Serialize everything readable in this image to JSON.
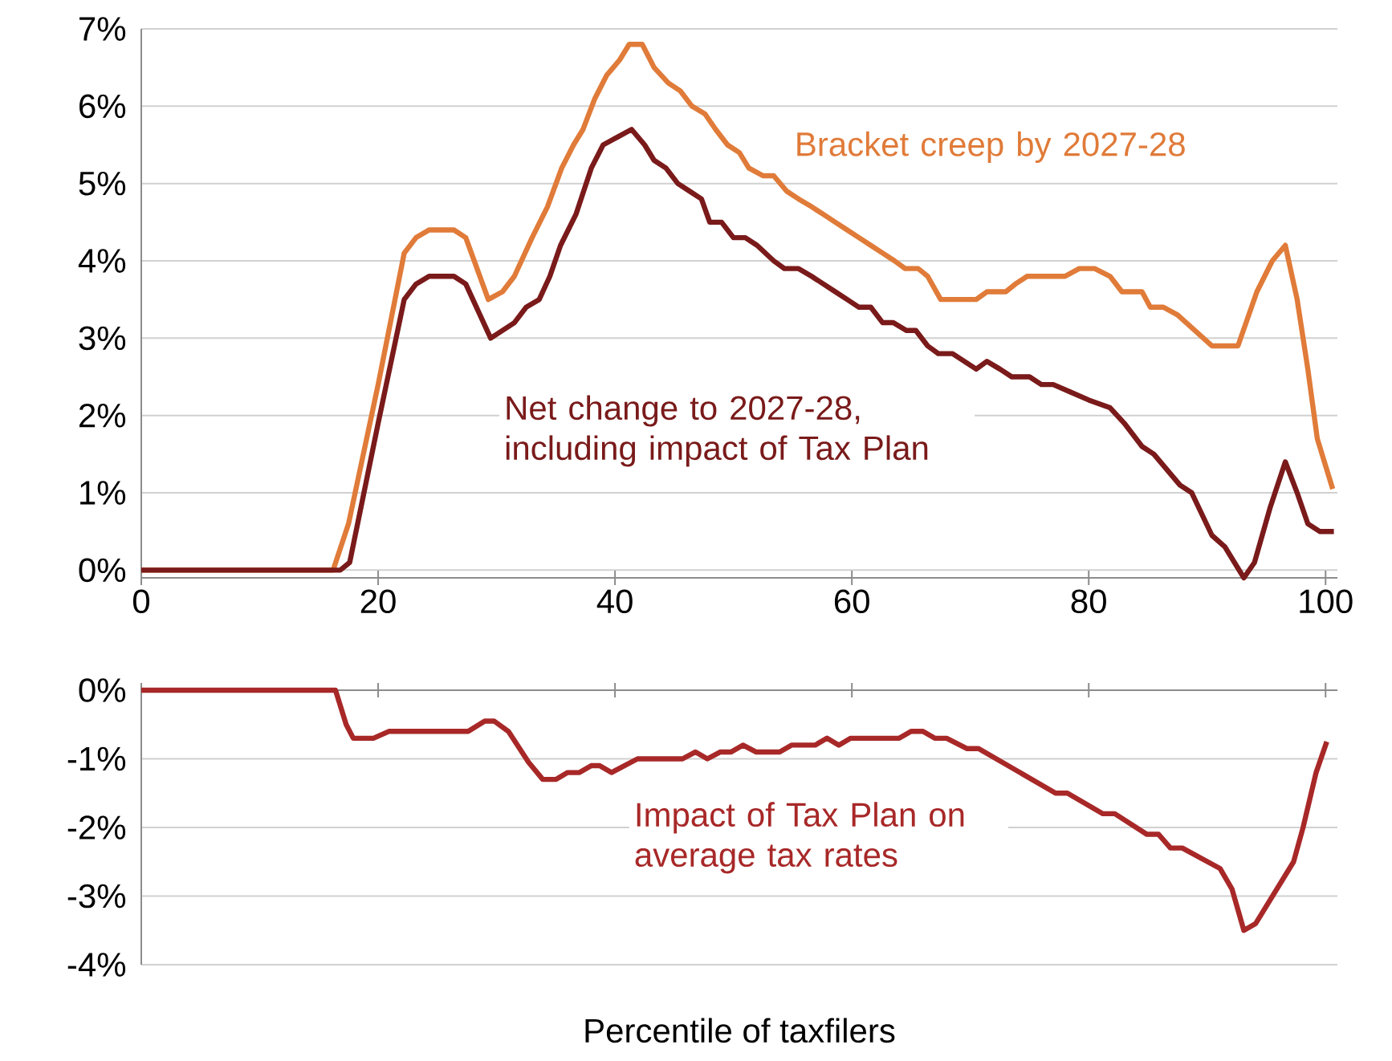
{
  "chart_data": [
    {
      "type": "line",
      "xlim": [
        0,
        101
      ],
      "ylim": [
        -0.1,
        7
      ],
      "xticks": [
        0,
        20,
        40,
        60,
        80,
        100
      ],
      "yticks": [
        {
          "value": 0,
          "label": "0%"
        },
        {
          "value": 1,
          "label": "1%"
        },
        {
          "value": 2,
          "label": "2%"
        },
        {
          "value": 3,
          "label": "3%"
        },
        {
          "value": 4,
          "label": "4%"
        },
        {
          "value": 5,
          "label": "5%"
        },
        {
          "value": 6,
          "label": "6%"
        },
        {
          "value": 7,
          "label": "7%"
        }
      ],
      "grid": "y",
      "series": [
        {
          "name": "Bracket creep by 2027-28",
          "color": "#e07b39",
          "x": [
            0,
            16.2,
            17.5,
            20,
            22.2,
            23.2,
            24.3,
            26.4,
            27.4,
            29.3,
            30.5,
            31.5,
            33,
            34.3,
            35.5,
            36.5,
            37.3,
            38.3,
            39.3,
            40.4,
            41.2,
            42.3,
            43.3,
            44.5,
            45.5,
            46.5,
            47.6,
            48.5,
            49.5,
            50.5,
            51.3,
            52.5,
            53.4,
            54.5,
            55.5,
            56.6,
            57.6,
            58.6,
            59.6,
            60.6,
            61.6,
            62.6,
            63.6,
            64.5,
            65.6,
            66.4,
            67.5,
            70.5,
            71.4,
            73,
            73.8,
            74.8,
            78,
            79.2,
            80.5,
            81.8,
            82.8,
            84.5,
            85.2,
            86.3,
            87.5,
            90.4,
            92.6,
            94.2,
            95.5,
            96.6,
            97.6,
            98.5,
            99.3,
            100.6
          ],
          "values": [
            0,
            0,
            0.6,
            2.4,
            4.1,
            4.3,
            4.4,
            4.4,
            4.3,
            3.5,
            3.6,
            3.8,
            4.3,
            4.7,
            5.2,
            5.5,
            5.7,
            6.1,
            6.4,
            6.6,
            6.8,
            6.8,
            6.5,
            6.3,
            6.2,
            6.0,
            5.9,
            5.7,
            5.5,
            5.4,
            5.2,
            5.1,
            5.1,
            4.9,
            4.8,
            4.7,
            4.6,
            4.5,
            4.4,
            4.3,
            4.2,
            4.1,
            4.0,
            3.9,
            3.9,
            3.8,
            3.5,
            3.5,
            3.6,
            3.6,
            3.7,
            3.8,
            3.8,
            3.9,
            3.9,
            3.8,
            3.6,
            3.6,
            3.4,
            3.4,
            3.3,
            2.9,
            2.9,
            3.6,
            4.0,
            4.2,
            3.5,
            2.6,
            1.7,
            1.05
          ]
        },
        {
          "name": "Net change to 2027-28, including impact of Tax Plan",
          "color": "#7a1a1a",
          "x": [
            0,
            16.8,
            17.6,
            20,
            22.2,
            23.2,
            24.3,
            26.4,
            27.4,
            29.5,
            31.5,
            32.5,
            33.6,
            34.5,
            35.4,
            36.7,
            38,
            39,
            40.2,
            41.4,
            42.5,
            43.3,
            44.3,
            45.3,
            46.3,
            47.3,
            48,
            49,
            50,
            51,
            52,
            53.4,
            54.3,
            55.5,
            56.6,
            57.6,
            58.6,
            59.6,
            60.6,
            61.6,
            62.6,
            63.5,
            64.6,
            65.4,
            66.4,
            67.3,
            68.5,
            70.5,
            71.4,
            72.5,
            73.5,
            75,
            76,
            77,
            78.5,
            80,
            81.8,
            83,
            84.5,
            85.5,
            86.6,
            87.7,
            88.7,
            90.4,
            91.5,
            93.1,
            94,
            95.3,
            96.6,
            97.6,
            98.5,
            99.5,
            100.7
          ],
          "values": [
            0,
            0,
            0.1,
            1.9,
            3.5,
            3.7,
            3.8,
            3.8,
            3.7,
            3.0,
            3.2,
            3.4,
            3.5,
            3.8,
            4.2,
            4.6,
            5.2,
            5.5,
            5.6,
            5.7,
            5.5,
            5.3,
            5.2,
            5.0,
            4.9,
            4.8,
            4.5,
            4.5,
            4.3,
            4.3,
            4.2,
            4.0,
            3.9,
            3.9,
            3.8,
            3.7,
            3.6,
            3.5,
            3.4,
            3.4,
            3.2,
            3.2,
            3.1,
            3.1,
            2.9,
            2.8,
            2.8,
            2.6,
            2.7,
            2.6,
            2.5,
            2.5,
            2.4,
            2.4,
            2.3,
            2.2,
            2.1,
            1.9,
            1.6,
            1.5,
            1.3,
            1.1,
            1.0,
            0.45,
            0.3,
            -0.1,
            0.1,
            0.8,
            1.4,
            1.0,
            0.6,
            0.5,
            0.5
          ]
        }
      ]
    },
    {
      "type": "line",
      "xlim": [
        0,
        101
      ],
      "ylim": [
        -4,
        0
      ],
      "xticks": [
        0,
        20,
        40,
        60,
        80,
        100
      ],
      "yticks": [
        {
          "value": 0,
          "label": "0%"
        },
        {
          "value": -1,
          "label": "-1%"
        },
        {
          "value": -2,
          "label": "-2%"
        },
        {
          "value": -3,
          "label": "-3%"
        },
        {
          "value": -4,
          "label": "-4%"
        }
      ],
      "grid": "y",
      "tick_labels": "y",
      "xlabel": "Percentile of taxfilers",
      "series": [
        {
          "name": "Impact of Tax Plan on average tax rates",
          "color": "#a82828",
          "x": [
            0,
            16.4,
            17.3,
            17.9,
            19.6,
            20.9,
            27.6,
            29,
            29.8,
            31,
            32.7,
            33.9,
            35,
            36,
            37,
            38,
            38.7,
            39.7,
            41.9,
            45.7,
            46.8,
            47.8,
            48.9,
            49.8,
            50.8,
            51.9,
            53.9,
            54.9,
            56.9,
            57.9,
            58.9,
            59.9,
            64,
            65,
            66,
            67,
            68,
            69.7,
            70.7,
            77.2,
            78.2,
            81.2,
            82.2,
            84.9,
            85.9,
            86.9,
            87.9,
            91.1,
            92.1,
            93.1,
            94.1,
            97.3,
            98.1,
            99.2,
            100.1
          ],
          "values": [
            0,
            0,
            -0.5,
            -0.7,
            -0.7,
            -0.6,
            -0.6,
            -0.45,
            -0.45,
            -0.6,
            -1.05,
            -1.3,
            -1.3,
            -1.2,
            -1.2,
            -1.1,
            -1.1,
            -1.2,
            -1.0,
            -1.0,
            -0.9,
            -1.0,
            -0.9,
            -0.9,
            -0.8,
            -0.9,
            -0.9,
            -0.8,
            -0.8,
            -0.7,
            -0.8,
            -0.7,
            -0.7,
            -0.6,
            -0.6,
            -0.7,
            -0.7,
            -0.85,
            -0.85,
            -1.5,
            -1.5,
            -1.8,
            -1.8,
            -2.1,
            -2.1,
            -2.3,
            -2.3,
            -2.6,
            -2.9,
            -3.5,
            -3.4,
            -2.5,
            -2.0,
            -1.2,
            -0.75
          ]
        }
      ]
    }
  ]
}
